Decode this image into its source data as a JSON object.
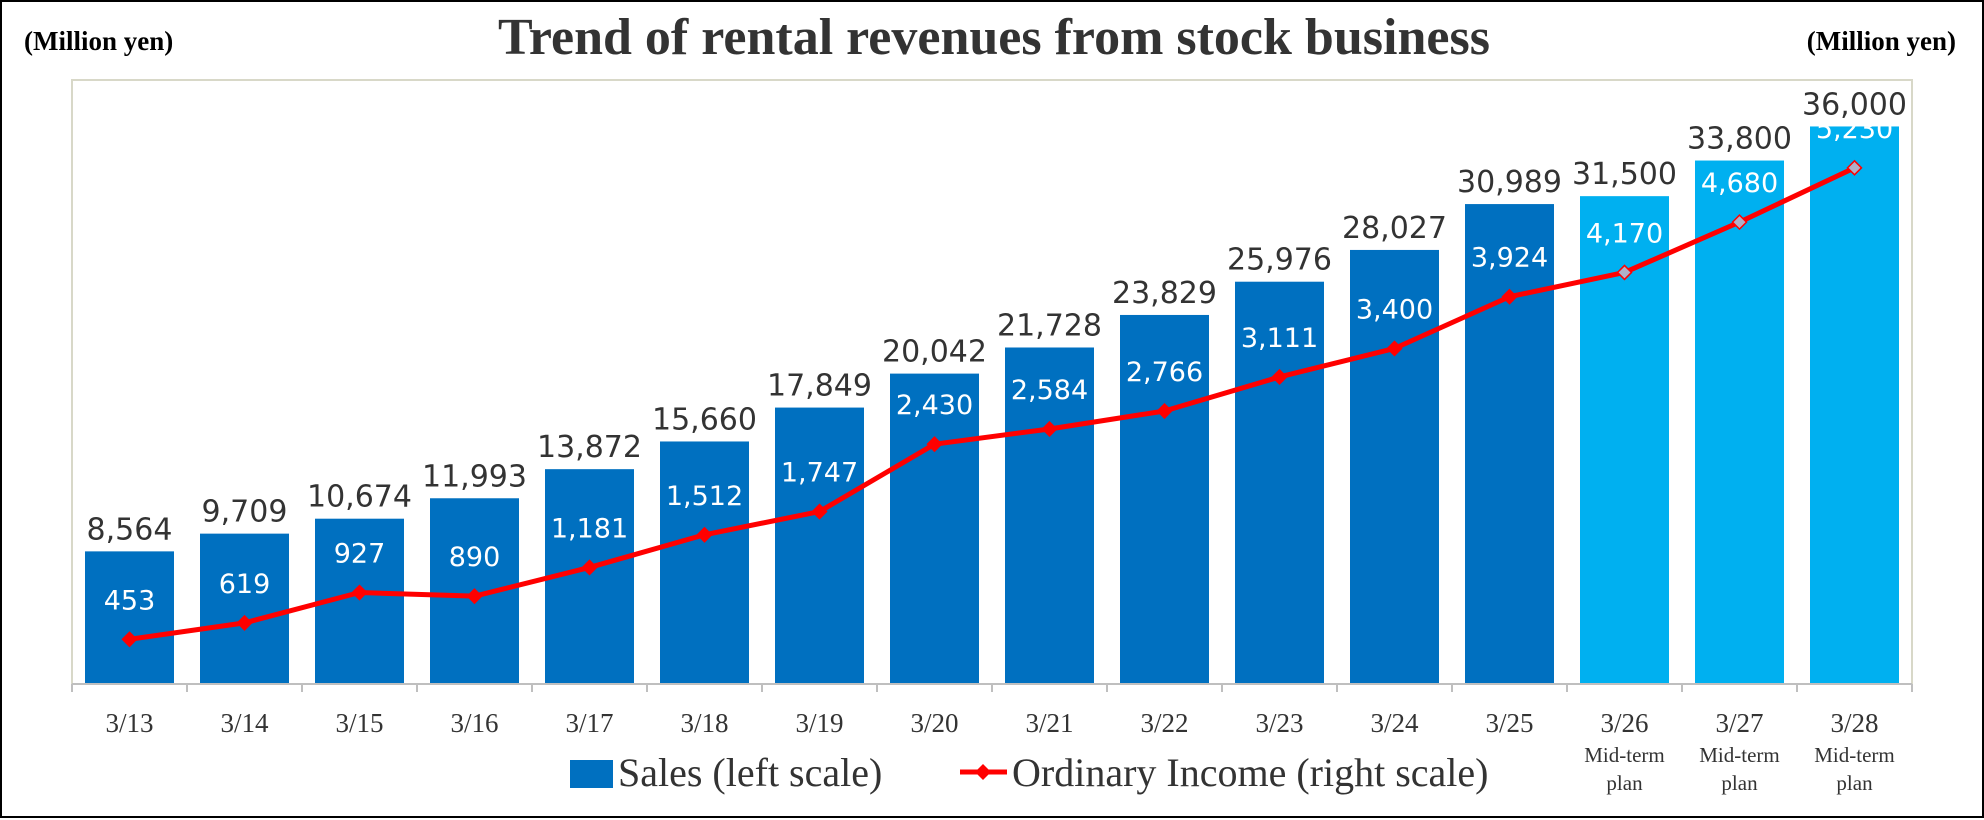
{
  "units": {
    "left": "(Million yen)",
    "right": "(Million yen)"
  },
  "chart_data": {
    "type": "bar",
    "title": "Trend of rental revenues from stock business",
    "categories": [
      "3/13",
      "3/14",
      "3/15",
      "3/16",
      "3/17",
      "3/18",
      "3/19",
      "3/20",
      "3/21",
      "3/22",
      "3/23",
      "3/24",
      "3/25",
      "3/26",
      "3/27",
      "3/28"
    ],
    "category_notes": [
      "",
      "",
      "",
      "",
      "",
      "",
      "",
      "",
      "",
      "",
      "",
      "",
      "",
      "Mid-term plan",
      "Mid-term plan",
      "Mid-term plan"
    ],
    "series": [
      {
        "name": "Sales (left scale)",
        "type": "bar",
        "axis": "left",
        "values": [
          8564,
          9709,
          10674,
          11993,
          13872,
          15660,
          17849,
          20042,
          21728,
          23829,
          25976,
          28027,
          30989,
          31500,
          33800,
          36000
        ],
        "labels": [
          "8,564",
          "9,709",
          "10,674",
          "11,993",
          "13,872",
          "15,660",
          "17,849",
          "20,042",
          "21,728",
          "23,829",
          "25,976",
          "28,027",
          "30,989",
          "31,500",
          "33,800",
          "36,000"
        ]
      },
      {
        "name": "Ordinary Income (right scale)",
        "type": "line",
        "axis": "right",
        "values": [
          453,
          619,
          927,
          890,
          1181,
          1512,
          1747,
          2430,
          2584,
          2766,
          3111,
          3400,
          3924,
          4170,
          4680,
          5230
        ],
        "labels": [
          "453",
          "619",
          "927",
          "890",
          "1,181",
          "1,512",
          "1,747",
          "2,430",
          "2,584",
          "2,766",
          "3,111",
          "3,400",
          "3,924",
          "4,170",
          "4,680",
          "5,230"
        ]
      }
    ],
    "ylim_left": [
      0,
      39000
    ],
    "ylim_right": [
      0,
      6120
    ],
    "colors": {
      "bar_actual": "#0070C0",
      "bar_plan": "#00B0F0",
      "line": "#FF0000",
      "marker_plan": "#B0B0C8"
    },
    "grid": false,
    "legend_position": "bottom-center"
  }
}
